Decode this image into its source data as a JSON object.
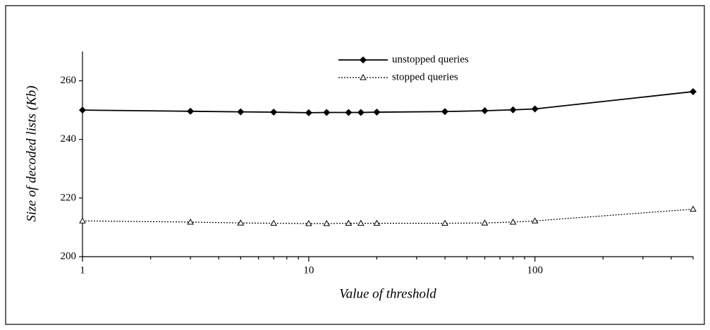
{
  "chart_data": {
    "type": "line",
    "x_label": "Value of threshold",
    "y_label": "Size of decoded lists (Kb)",
    "x": [
      1,
      3,
      5,
      7,
      10,
      12,
      15,
      17,
      20,
      40,
      60,
      80,
      100,
      500
    ],
    "series": [
      {
        "name": "unstopped queries",
        "color": "#000000",
        "marker": "diamond",
        "dash": "solid",
        "values": [
          250,
          249.6,
          249.4,
          249.3,
          249.1,
          249.2,
          249.2,
          249.2,
          249.3,
          249.5,
          249.8,
          250.1,
          250.4,
          256.3
        ]
      },
      {
        "name": "stopped queries",
        "color": "#000000",
        "marker": "triangle",
        "dash": "dotted",
        "values": [
          212.2,
          211.8,
          211.5,
          211.4,
          211.3,
          211.3,
          211.4,
          211.4,
          211.4,
          211.4,
          211.5,
          211.8,
          212.2,
          216.2
        ]
      }
    ],
    "xscale": "log",
    "xlim": [
      1,
      500
    ],
    "xticks": [
      1,
      10,
      100
    ],
    "ylim": [
      200,
      270
    ],
    "yticks": [
      200,
      220,
      240,
      260
    ],
    "grid": false,
    "legend": "top"
  }
}
